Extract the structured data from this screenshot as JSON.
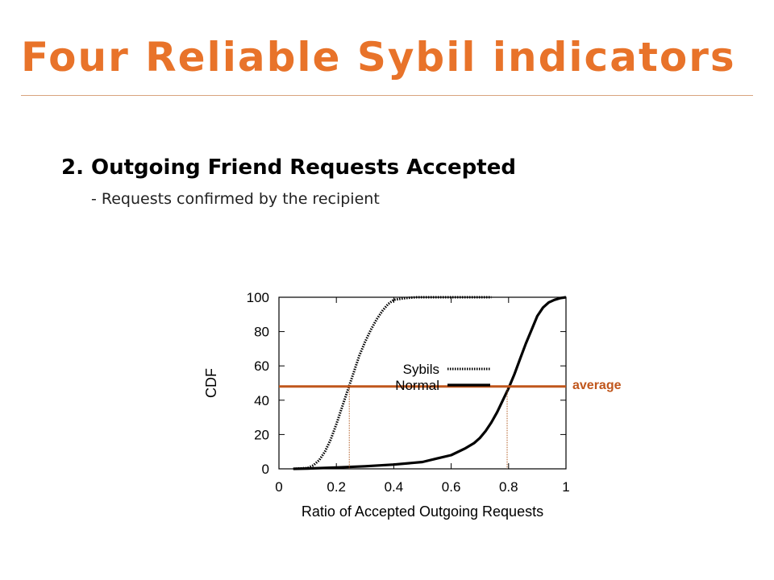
{
  "slide": {
    "title": "Four Reliable Sybil indicators",
    "heading": "2. Outgoing Friend Requests Accepted",
    "subheading": "- Requests confirmed by the recipient"
  },
  "colors": {
    "accent": "#e8732a",
    "rule": "#d9a37f",
    "average_line": "#c0561c",
    "marker_line": "#b05a20",
    "axis": "#000000"
  },
  "chart_data": {
    "type": "line",
    "xlabel": "Ratio of Accepted Outgoing Requests",
    "ylabel": "CDF",
    "xlim": [
      0,
      1
    ],
    "ylim": [
      0,
      100
    ],
    "xticks": [
      "0",
      "0.2",
      "0.4",
      "0.6",
      "0.8",
      "1"
    ],
    "yticks": [
      "0",
      "20",
      "40",
      "60",
      "80",
      "100"
    ],
    "legend_placement": "center-right",
    "grid": false,
    "series": [
      {
        "name": "Sybils",
        "style": "dotted",
        "x": [
          0.05,
          0.1,
          0.12,
          0.14,
          0.16,
          0.18,
          0.2,
          0.22,
          0.24,
          0.26,
          0.28,
          0.3,
          0.32,
          0.34,
          0.36,
          0.38,
          0.4,
          0.44,
          0.48,
          0.55,
          0.65,
          0.74
        ],
        "y": [
          0,
          0.5,
          2,
          5,
          10,
          17,
          26,
          36,
          46,
          56,
          66,
          74,
          81,
          87,
          92,
          96,
          98.5,
          99.5,
          100,
          100,
          100,
          100
        ]
      },
      {
        "name": "Normal",
        "style": "solid",
        "x": [
          0.05,
          0.1,
          0.2,
          0.3,
          0.4,
          0.5,
          0.55,
          0.6,
          0.65,
          0.68,
          0.7,
          0.72,
          0.74,
          0.76,
          0.78,
          0.8,
          0.82,
          0.84,
          0.86,
          0.88,
          0.9,
          0.92,
          0.94,
          0.96,
          0.98,
          1.0
        ],
        "y": [
          0,
          0.2,
          0.8,
          1.5,
          2.5,
          4,
          6,
          8,
          12,
          15,
          18,
          22,
          27,
          33,
          40,
          47,
          55,
          64,
          73,
          81,
          89,
          94,
          97,
          98.5,
          99.5,
          100
        ]
      }
    ],
    "annotations": {
      "average_label": "average",
      "average_y": 48,
      "marker_x": [
        0.245,
        0.795
      ]
    }
  }
}
